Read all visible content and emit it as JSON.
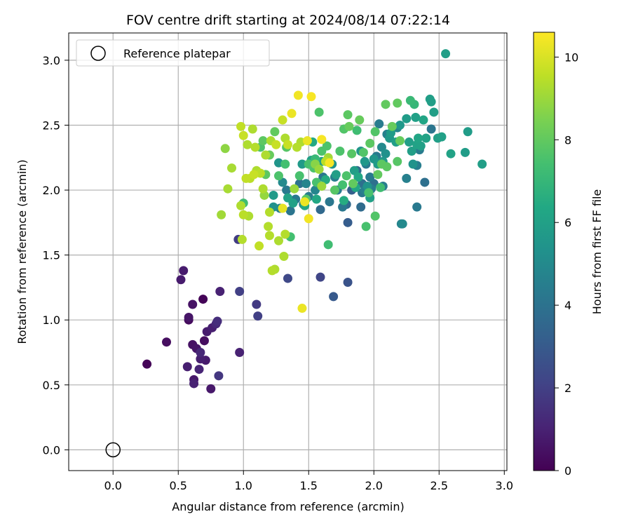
{
  "chart_data": {
    "type": "scatter",
    "title": "FOV centre drift starting at 2024/08/14 07:22:14",
    "xlabel": "Angular distance from reference (arcmin)",
    "ylabel": "Rotation from reference (arcmin)",
    "xlim": [
      -0.34,
      3.02
    ],
    "ylim": [
      -0.16,
      3.21
    ],
    "xticks": [
      "0.0",
      "0.5",
      "1.0",
      "1.5",
      "2.0",
      "2.5",
      "3.0"
    ],
    "xtick_values": [
      0,
      0.5,
      1.0,
      1.5,
      2.0,
      2.5,
      3.0
    ],
    "yticks": [
      "0.0",
      "0.5",
      "1.0",
      "1.5",
      "2.0",
      "2.5",
      "3.0"
    ],
    "ytick_values": [
      0,
      0.5,
      1.0,
      1.5,
      2.0,
      2.5,
      3.0
    ],
    "grid": true,
    "legend": {
      "location": "upper left",
      "entries": [
        {
          "label": "Reference platepar",
          "marker": "open-circle"
        }
      ]
    },
    "reference_point": {
      "x": 0.0,
      "y": 0.0
    },
    "colorbar": {
      "label": "Hours from first FF file",
      "colormap": "viridis",
      "min": 0,
      "max": 10.6,
      "ticks": [
        0,
        2,
        4,
        6,
        8,
        10
      ]
    },
    "series": [
      {
        "points": [
          [
            0.26,
            0.66,
            0.1
          ],
          [
            0.41,
            0.83,
            0.4
          ],
          [
            0.52,
            1.31,
            0.8
          ],
          [
            0.54,
            1.38,
            0.8
          ],
          [
            0.57,
            0.64,
            0.9
          ],
          [
            0.58,
            1.0,
            0.3
          ],
          [
            0.58,
            1.02,
            0.6
          ],
          [
            0.61,
            1.12,
            0.5
          ],
          [
            0.61,
            0.81,
            0.5
          ],
          [
            0.62,
            0.54,
            0.7
          ],
          [
            0.62,
            0.51,
            1.0
          ],
          [
            0.64,
            0.78,
            0.6
          ],
          [
            0.66,
            0.62,
            1.1
          ],
          [
            0.67,
            0.7,
            0.9
          ],
          [
            0.67,
            0.75,
            1.2
          ],
          [
            0.69,
            1.16,
            0.1
          ],
          [
            0.7,
            0.84,
            0.4
          ],
          [
            0.71,
            0.69,
            0.8
          ],
          [
            0.72,
            0.91,
            0.8
          ],
          [
            0.75,
            0.47,
            0.7
          ],
          [
            0.76,
            0.94,
            0.9
          ],
          [
            0.79,
            0.97,
            1.2
          ],
          [
            0.8,
            0.99,
            1.4
          ],
          [
            0.81,
            0.57,
            1.7
          ],
          [
            0.82,
            1.22,
            1.0
          ],
          [
            0.96,
            1.62,
            1.9
          ],
          [
            0.97,
            0.75,
            1.0
          ],
          [
            0.97,
            1.22,
            2.0
          ],
          [
            1.1,
            1.12,
            1.8
          ],
          [
            1.11,
            1.03,
            2.0
          ],
          [
            1.34,
            1.32,
            2.3
          ],
          [
            1.59,
            1.33,
            2.2
          ],
          [
            1.69,
            1.18,
            3.0
          ],
          [
            1.8,
            1.29,
            2.7
          ],
          [
            1.16,
            1.96,
            8.9
          ],
          [
            1.23,
            1.87,
            5.3
          ],
          [
            1.28,
            1.86,
            4.6
          ],
          [
            1.3,
            2.06,
            5.0
          ],
          [
            1.33,
            2.0,
            4.3
          ],
          [
            1.36,
            1.84,
            4.1
          ],
          [
            1.4,
            1.93,
            4.3
          ],
          [
            1.43,
            2.05,
            4.0
          ],
          [
            1.46,
            1.89,
            4.0
          ],
          [
            1.48,
            2.05,
            4.8
          ],
          [
            1.5,
            1.95,
            4.5
          ],
          [
            1.55,
            2.0,
            4.8
          ],
          [
            1.59,
            1.85,
            3.6
          ],
          [
            1.61,
            2.1,
            4.2
          ],
          [
            1.66,
            1.91,
            4.2
          ],
          [
            1.7,
            2.1,
            4.5
          ],
          [
            1.72,
            2.0,
            4.4
          ],
          [
            1.76,
            1.87,
            4.2
          ],
          [
            1.79,
            1.89,
            3.6
          ],
          [
            1.8,
            1.75,
            3.1
          ],
          [
            1.83,
            2.0,
            3.2
          ],
          [
            1.87,
            2.15,
            3.7
          ],
          [
            1.88,
            2.1,
            3.6
          ],
          [
            1.9,
            1.87,
            3.7
          ],
          [
            1.91,
            2.05,
            3.9
          ],
          [
            1.91,
            1.98,
            4.2
          ],
          [
            1.93,
            2.0,
            4.6
          ],
          [
            1.94,
            2.2,
            4.3
          ],
          [
            1.97,
            2.1,
            4.3
          ],
          [
            1.98,
            2.01,
            4.5
          ],
          [
            2.0,
            2.05,
            3.9
          ],
          [
            2.02,
            2.26,
            4.3
          ],
          [
            2.04,
            2.51,
            4.4
          ],
          [
            2.06,
            2.33,
            5.0
          ],
          [
            2.07,
            2.03,
            4.5
          ],
          [
            2.1,
            2.43,
            4.6
          ],
          [
            2.18,
            2.48,
            4.8
          ],
          [
            2.21,
            1.74,
            4.7
          ],
          [
            2.22,
            1.74,
            5.0
          ],
          [
            2.25,
            2.09,
            4.6
          ],
          [
            2.3,
            2.2,
            5.4
          ],
          [
            2.33,
            1.87,
            4.3
          ],
          [
            2.33,
            2.19,
            4.5
          ],
          [
            2.35,
            2.31,
            4.4
          ],
          [
            2.39,
            2.06,
            3.9
          ],
          [
            2.44,
            2.47,
            4.1
          ],
          [
            1.23,
            1.96,
            5.7
          ],
          [
            1.27,
            2.21,
            5.5
          ],
          [
            1.34,
            1.94,
            6.1
          ],
          [
            1.38,
            1.9,
            6.0
          ],
          [
            1.45,
            2.2,
            5.7
          ],
          [
            1.47,
            1.88,
            6.3
          ],
          [
            1.52,
            2.23,
            6.0
          ],
          [
            1.53,
            2.37,
            6.4
          ],
          [
            1.56,
            1.93,
            6.3
          ],
          [
            1.6,
            2.22,
            6.1
          ],
          [
            1.63,
            2.08,
            6.5
          ],
          [
            1.68,
            2.2,
            5.4
          ],
          [
            1.71,
            2.12,
            5.9
          ],
          [
            1.77,
            1.92,
            6.5
          ],
          [
            1.85,
            2.15,
            5.9
          ],
          [
            1.86,
            2.02,
            6.2
          ],
          [
            1.88,
            2.1,
            6.3
          ],
          [
            1.9,
            2.3,
            5.5
          ],
          [
            1.93,
            2.22,
            5.6
          ],
          [
            1.95,
            2.03,
            5.4
          ],
          [
            1.97,
            1.94,
            6.0
          ],
          [
            2.0,
            2.24,
            5.5
          ],
          [
            2.03,
            2.2,
            5.7
          ],
          [
            2.07,
            2.22,
            5.6
          ],
          [
            2.09,
            2.28,
            5.3
          ],
          [
            2.12,
            2.4,
            5.6
          ],
          [
            2.13,
            2.44,
            5.8
          ],
          [
            2.17,
            2.37,
            5.9
          ],
          [
            2.2,
            2.5,
            5.6
          ],
          [
            2.25,
            2.55,
            5.8
          ],
          [
            2.27,
            2.37,
            5.9
          ],
          [
            2.29,
            2.3,
            5.9
          ],
          [
            2.32,
            2.56,
            6.0
          ],
          [
            2.33,
            2.35,
            6.1
          ],
          [
            2.34,
            2.4,
            6.2
          ],
          [
            2.36,
            2.34,
            6.0
          ],
          [
            2.38,
            2.54,
            6.2
          ],
          [
            2.4,
            2.4,
            6.1
          ],
          [
            2.43,
            2.7,
            5.9
          ],
          [
            2.44,
            2.68,
            5.9
          ],
          [
            2.46,
            2.6,
            5.9
          ],
          [
            2.49,
            2.4,
            5.9
          ],
          [
            2.52,
            2.41,
            6.0
          ],
          [
            2.55,
            3.05,
            5.9
          ],
          [
            2.59,
            2.28,
            6.1
          ],
          [
            2.7,
            2.29,
            5.8
          ],
          [
            2.72,
            2.45,
            5.8
          ],
          [
            2.83,
            2.2,
            5.9
          ],
          [
            1.0,
            1.9,
            7.3
          ],
          [
            1.13,
            2.33,
            7.6
          ],
          [
            1.15,
            2.38,
            7.9
          ],
          [
            1.17,
            2.12,
            7.9
          ],
          [
            1.2,
            2.27,
            8.1
          ],
          [
            1.24,
            2.45,
            8.0
          ],
          [
            1.27,
            2.11,
            7.6
          ],
          [
            1.32,
            2.2,
            7.4
          ],
          [
            1.33,
            2.33,
            7.8
          ],
          [
            1.36,
            1.64,
            7.4
          ],
          [
            1.43,
            2.11,
            7.5
          ],
          [
            1.48,
            1.93,
            7.8
          ],
          [
            1.5,
            2.2,
            7.5
          ],
          [
            1.54,
            2.17,
            7.6
          ],
          [
            1.56,
            2.06,
            7.5
          ],
          [
            1.58,
            2.6,
            7.6
          ],
          [
            1.6,
            2.3,
            7.6
          ],
          [
            1.64,
            2.34,
            7.6
          ],
          [
            1.65,
            1.58,
            7.3
          ],
          [
            1.7,
            2.0,
            7.8
          ],
          [
            1.74,
            2.3,
            7.6
          ],
          [
            1.77,
            2.47,
            7.7
          ],
          [
            1.79,
            2.11,
            7.6
          ],
          [
            1.8,
            2.58,
            7.9
          ],
          [
            1.81,
            2.49,
            8.1
          ],
          [
            1.83,
            2.28,
            7.8
          ],
          [
            1.84,
            2.05,
            8.0
          ],
          [
            1.87,
            2.46,
            7.3
          ],
          [
            1.89,
            2.54,
            8.1
          ],
          [
            1.92,
            2.29,
            7.7
          ],
          [
            1.94,
            1.72,
            7.5
          ],
          [
            1.96,
            1.98,
            7.5
          ],
          [
            1.97,
            2.36,
            7.9
          ],
          [
            2.01,
            1.8,
            7.7
          ],
          [
            2.01,
            2.45,
            7.7
          ],
          [
            2.03,
            2.12,
            8.0
          ],
          [
            2.05,
            2.02,
            7.3
          ],
          [
            2.06,
            2.2,
            7.9
          ],
          [
            2.09,
            2.66,
            8.0
          ],
          [
            2.1,
            2.18,
            7.9
          ],
          [
            2.14,
            2.49,
            8.1
          ],
          [
            2.18,
            2.67,
            8.0
          ],
          [
            2.18,
            2.22,
            7.8
          ],
          [
            2.2,
            2.38,
            8.1
          ],
          [
            2.28,
            2.69,
            7.1
          ],
          [
            2.31,
            2.66,
            7.0
          ],
          [
            1.55,
            2.24,
            7.1
          ],
          [
            1.76,
            2.04,
            7.4
          ],
          [
            0.83,
            1.81,
            9.1
          ],
          [
            0.86,
            2.32,
            8.8
          ],
          [
            0.88,
            2.01,
            9.2
          ],
          [
            0.91,
            2.17,
            9.2
          ],
          [
            0.98,
            2.49,
            9.6
          ],
          [
            0.98,
            1.88,
            9.3
          ],
          [
            0.99,
            1.62,
            9.4
          ],
          [
            1.0,
            2.42,
            9.7
          ],
          [
            1.0,
            1.81,
            9.5
          ],
          [
            1.02,
            2.09,
            9.6
          ],
          [
            1.03,
            2.35,
            9.3
          ],
          [
            1.04,
            1.8,
            9.3
          ],
          [
            1.05,
            2.09,
            9.5
          ],
          [
            1.07,
            2.47,
            9.3
          ],
          [
            1.08,
            2.12,
            9.7
          ],
          [
            1.09,
            2.33,
            9.4
          ],
          [
            1.1,
            2.15,
            9.3
          ],
          [
            1.12,
            1.57,
            9.6
          ],
          [
            1.13,
            2.13,
            9.5
          ],
          [
            1.15,
            2.01,
            9.3
          ],
          [
            1.17,
            2.27,
            9.3
          ],
          [
            1.19,
            1.72,
            9.4
          ],
          [
            1.2,
            1.65,
            9.4
          ],
          [
            1.2,
            1.83,
            9.4
          ],
          [
            1.21,
            2.38,
            9.3
          ],
          [
            1.22,
            1.38,
            9.4
          ],
          [
            1.24,
            1.39,
            9.3
          ],
          [
            1.25,
            2.35,
            9.7
          ],
          [
            1.27,
            1.61,
            9.3
          ],
          [
            1.3,
            2.54,
            9.7
          ],
          [
            1.3,
            1.86,
            10.2
          ],
          [
            1.31,
            1.49,
            9.3
          ],
          [
            1.32,
            2.4,
            9.3
          ],
          [
            1.32,
            1.66,
            9.4
          ],
          [
            1.34,
            2.35,
            9.7
          ],
          [
            1.37,
            2.59,
            10.3
          ],
          [
            1.39,
            2.01,
            9.0
          ],
          [
            1.41,
            2.33,
            9.4
          ],
          [
            1.42,
            2.73,
            10.4
          ],
          [
            1.44,
            2.37,
            9.3
          ],
          [
            1.45,
            1.09,
            10.3
          ],
          [
            1.47,
            1.91,
            10.3
          ],
          [
            1.49,
            2.38,
            10.3
          ],
          [
            1.5,
            1.78,
            10.4
          ],
          [
            1.52,
            2.72,
            10.5
          ],
          [
            1.58,
            2.16,
            9.0
          ],
          [
            1.6,
            2.39,
            10.5
          ],
          [
            1.63,
            2.22,
            9.5
          ],
          [
            1.65,
            2.25,
            9.1
          ],
          [
            1.66,
            2.21,
            10.5
          ],
          [
            1.55,
            2.2,
            8.7
          ],
          [
            1.6,
            2.03,
            9.0
          ]
        ]
      }
    ]
  }
}
